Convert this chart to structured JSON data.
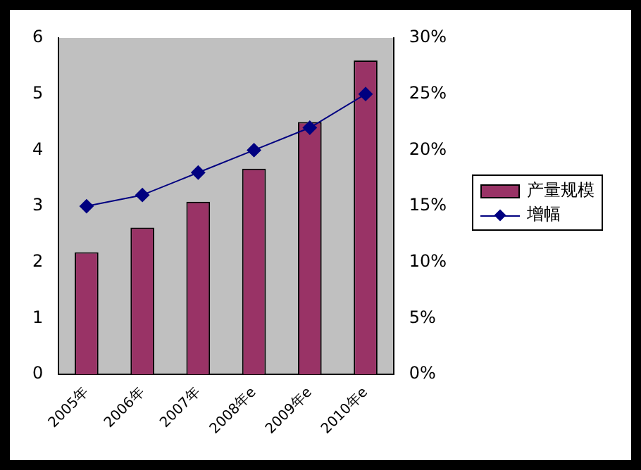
{
  "chart_data": {
    "type": "bar",
    "categories": [
      "2005年",
      "2006年",
      "2007年",
      "2008年e",
      "2009年e",
      "2010年e"
    ],
    "series": [
      {
        "name": "产量规模",
        "color": "#993366",
        "values": [
          2.18,
          2.62,
          3.08,
          3.67,
          4.5,
          5.6
        ]
      },
      {
        "name": "增幅",
        "type": "line",
        "axis": "y2",
        "color": "#000080",
        "marker": "diamond",
        "values": [
          15,
          16,
          18,
          20,
          22,
          25
        ]
      }
    ],
    "ylim": [
      0,
      6
    ],
    "yticks": [
      0,
      1,
      2,
      3,
      4,
      5,
      6
    ],
    "y2lim": [
      0,
      30
    ],
    "y2ticks": [
      {
        "value": 0,
        "label": "0%"
      },
      {
        "value": 5,
        "label": "5%"
      },
      {
        "value": 10,
        "label": "10%"
      },
      {
        "value": 15,
        "label": "15%"
      },
      {
        "value": 20,
        "label": "20%"
      },
      {
        "value": 25,
        "label": "25%"
      },
      {
        "value": 30,
        "label": "30%"
      }
    ],
    "grid": false,
    "legend": "right"
  }
}
